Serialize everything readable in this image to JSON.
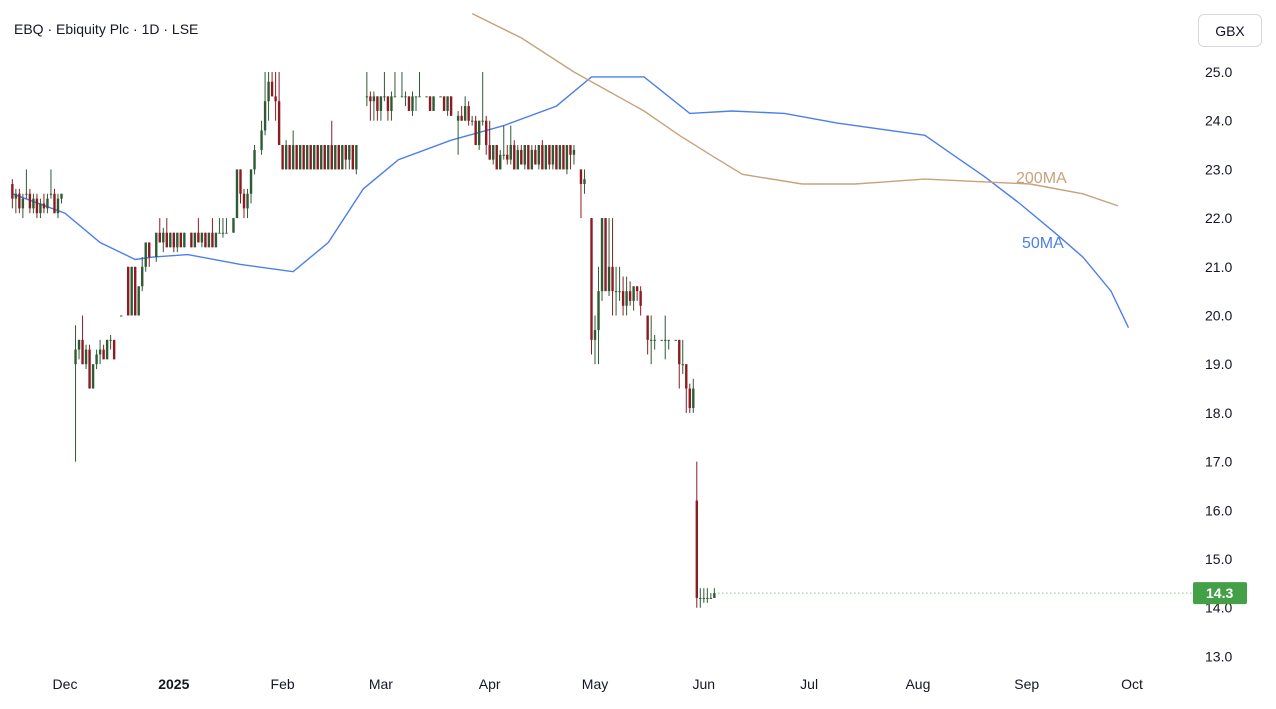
{
  "header": {
    "title": "EBQ · Ebiquity Plc · 1D · LSE",
    "currency_button": "GBX"
  },
  "colors": {
    "up": "#2e5b34",
    "down": "#8c1c24",
    "ma50": "#4d7fe8",
    "ma200": "#c8a27a",
    "last_price_bg": "#43a047",
    "grid": "#f0f3fa"
  },
  "chart_data": {
    "type": "candlestick",
    "title": "EBQ · Ebiquity Plc · 1D · LSE",
    "ylim": [
      12.6,
      25.6
    ],
    "y_ticks": [
      "13.0",
      "14.0",
      "15.0",
      "16.0",
      "17.0",
      "18.0",
      "19.0",
      "20.0",
      "21.0",
      "22.0",
      "23.0",
      "24.0",
      "25.0"
    ],
    "x_ticks": [
      {
        "label": "Dec",
        "day": 0
      },
      {
        "label": "2025",
        "day": 31,
        "bold": true
      },
      {
        "label": "Feb",
        "day": 62
      },
      {
        "label": "Mar",
        "day": 90
      },
      {
        "label": "Apr",
        "day": 121
      },
      {
        "label": "May",
        "day": 151
      },
      {
        "label": "Jun",
        "day": 182
      },
      {
        "label": "Jul",
        "day": 212
      },
      {
        "label": "Aug",
        "day": 243
      },
      {
        "label": "Sep",
        "day": 274
      },
      {
        "label": "Oct",
        "day": 304
      }
    ],
    "series": [
      {
        "name": "50MA",
        "label": "50MA",
        "points": [
          [
            -15,
            22.5
          ],
          [
            0,
            22.1
          ],
          [
            10,
            21.5
          ],
          [
            20,
            21.15
          ],
          [
            25,
            21.2
          ],
          [
            35,
            21.25
          ],
          [
            50,
            21.05
          ],
          [
            65,
            20.9
          ],
          [
            75,
            21.5
          ],
          [
            85,
            22.6
          ],
          [
            95,
            23.2
          ],
          [
            110,
            23.6
          ],
          [
            125,
            23.9
          ],
          [
            140,
            24.3
          ],
          [
            150,
            24.9
          ],
          [
            165,
            24.9
          ],
          [
            178,
            24.15
          ],
          [
            190,
            24.2
          ],
          [
            205,
            24.15
          ],
          [
            220,
            23.95
          ],
          [
            235,
            23.8
          ],
          [
            245,
            23.7
          ],
          [
            252,
            23.35
          ],
          [
            262,
            22.85
          ],
          [
            272,
            22.3
          ],
          [
            282,
            21.7
          ],
          [
            290,
            21.2
          ],
          [
            298,
            20.5
          ],
          [
            303,
            19.75
          ]
        ]
      },
      {
        "name": "200MA",
        "label": "200MA",
        "points": [
          [
            116,
            26.2
          ],
          [
            130,
            25.7
          ],
          [
            145,
            25.0
          ],
          [
            155,
            24.6
          ],
          [
            165,
            24.2
          ],
          [
            175,
            23.7
          ],
          [
            185,
            23.25
          ],
          [
            193,
            22.9
          ],
          [
            210,
            22.7
          ],
          [
            225,
            22.7
          ],
          [
            245,
            22.8
          ],
          [
            260,
            22.75
          ],
          [
            275,
            22.7
          ],
          [
            290,
            22.5
          ],
          [
            300,
            22.25
          ]
        ]
      }
    ],
    "candles": [
      [
        -15,
        22.7,
        22.8,
        22.2,
        22.4
      ],
      [
        -14,
        22.4,
        22.6,
        22.1,
        22.5
      ],
      [
        -13,
        22.5,
        22.6,
        22.1,
        22.2
      ],
      [
        -12,
        22.2,
        22.5,
        22.0,
        22.4
      ],
      [
        -11,
        22.5,
        23.0,
        22.4,
        22.5
      ],
      [
        -10,
        22.5,
        22.6,
        22.1,
        22.2
      ],
      [
        -9,
        22.2,
        22.5,
        22.1,
        22.4
      ],
      [
        -8,
        22.4,
        22.5,
        22.0,
        22.1
      ],
      [
        -7,
        22.1,
        22.4,
        22.0,
        22.3
      ],
      [
        -6,
        22.3,
        22.5,
        22.1,
        22.2
      ],
      [
        -5,
        22.2,
        22.5,
        22.1,
        22.4
      ],
      [
        -4,
        22.5,
        23.0,
        22.4,
        22.5
      ],
      [
        -3,
        22.5,
        22.6,
        22.1,
        22.1
      ],
      [
        -2,
        22.1,
        22.5,
        22.0,
        22.4
      ],
      [
        -1,
        22.4,
        22.5,
        22.3,
        22.5
      ],
      [
        3,
        19.0,
        19.8,
        17.0,
        19.3
      ],
      [
        4,
        19.3,
        19.5,
        19.1,
        19.5
      ],
      [
        5,
        19.5,
        20.0,
        19.0,
        19.0
      ],
      [
        6,
        19.0,
        19.4,
        18.9,
        19.3
      ],
      [
        7,
        19.3,
        19.4,
        18.5,
        18.5
      ],
      [
        8,
        18.5,
        19.0,
        18.5,
        19.0
      ],
      [
        9,
        19.0,
        19.3,
        18.9,
        19.2
      ],
      [
        10,
        19.2,
        19.5,
        19.0,
        19.3
      ],
      [
        11,
        19.3,
        19.4,
        19.1,
        19.1
      ],
      [
        12,
        19.1,
        19.5,
        19.1,
        19.5
      ],
      [
        13,
        19.5,
        19.6,
        19.3,
        19.5
      ],
      [
        14,
        19.5,
        19.5,
        19.1,
        19.1
      ],
      [
        16,
        20.0,
        20.0,
        20.0,
        20.0
      ],
      [
        18,
        21.0,
        21.0,
        20.0,
        20.0
      ],
      [
        19,
        20.0,
        21.0,
        20.0,
        21.0
      ],
      [
        20,
        21.0,
        21.0,
        20.0,
        20.0
      ],
      [
        21,
        20.0,
        20.6,
        20.0,
        20.6
      ],
      [
        22,
        20.6,
        21.2,
        20.5,
        21.0
      ],
      [
        23,
        21.0,
        21.5,
        20.9,
        21.5
      ],
      [
        24,
        21.5,
        21.5,
        21.0,
        21.2
      ],
      [
        26,
        21.2,
        21.7,
        21.1,
        21.7
      ],
      [
        27,
        21.7,
        22.0,
        21.5,
        21.5
      ],
      [
        28,
        21.5,
        21.8,
        21.3,
        21.7
      ],
      [
        29,
        21.7,
        22.0,
        21.4,
        21.4
      ],
      [
        30,
        21.4,
        21.7,
        21.4,
        21.7
      ],
      [
        31,
        21.7,
        21.7,
        21.3,
        21.4
      ],
      [
        32,
        21.4,
        21.7,
        21.3,
        21.7
      ],
      [
        33,
        21.7,
        21.7,
        21.4,
        21.4
      ],
      [
        34,
        21.4,
        21.7,
        21.4,
        21.7
      ],
      [
        36,
        21.7,
        21.7,
        21.4,
        21.4
      ],
      [
        37,
        21.4,
        21.7,
        21.4,
        21.7
      ],
      [
        38,
        21.7,
        22.0,
        21.5,
        21.5
      ],
      [
        39,
        21.5,
        21.7,
        21.4,
        21.7
      ],
      [
        40,
        21.7,
        21.7,
        21.4,
        21.4
      ],
      [
        41,
        21.4,
        21.7,
        21.4,
        21.7
      ],
      [
        42,
        21.7,
        22.0,
        21.4,
        21.4
      ],
      [
        43,
        21.4,
        21.7,
        21.4,
        21.7
      ],
      [
        44,
        21.7,
        22.0,
        21.7,
        21.7
      ],
      [
        45,
        21.7,
        22.0,
        21.6,
        21.7
      ],
      [
        46,
        21.7,
        22.0,
        21.7,
        21.7
      ],
      [
        48,
        21.7,
        22.0,
        21.7,
        22.0
      ],
      [
        49,
        22.0,
        23.0,
        22.0,
        23.0
      ],
      [
        50,
        23.0,
        23.0,
        22.3,
        22.5
      ],
      [
        51,
        22.5,
        22.6,
        22.0,
        22.2
      ],
      [
        52,
        22.2,
        22.6,
        22.0,
        22.5
      ],
      [
        53,
        22.5,
        23.0,
        22.3,
        23.0
      ],
      [
        54,
        23.0,
        23.5,
        22.9,
        23.4
      ],
      [
        56,
        23.4,
        24.0,
        23.3,
        23.8
      ],
      [
        57,
        23.8,
        25.0,
        23.7,
        24.4
      ],
      [
        58,
        24.4,
        25.0,
        24.0,
        24.8
      ],
      [
        59,
        24.8,
        25.0,
        24.5,
        24.5
      ],
      [
        60,
        24.5,
        25.0,
        24.0,
        24.4
      ],
      [
        61,
        24.4,
        25.0,
        23.5,
        23.5
      ],
      [
        62,
        23.5,
        23.5,
        23.0,
        23.0
      ],
      [
        63,
        23.0,
        23.6,
        23.0,
        23.5
      ],
      [
        64,
        23.5,
        23.5,
        23.0,
        23.0
      ],
      [
        65,
        23.0,
        23.8,
        23.0,
        23.5
      ],
      [
        66,
        23.5,
        23.5,
        23.0,
        23.0
      ],
      [
        67,
        23.0,
        23.5,
        23.0,
        23.5
      ],
      [
        68,
        23.5,
        23.5,
        23.0,
        23.0
      ],
      [
        69,
        23.0,
        23.5,
        23.0,
        23.5
      ],
      [
        70,
        23.5,
        23.5,
        23.0,
        23.0
      ],
      [
        71,
        23.0,
        23.5,
        23.0,
        23.5
      ],
      [
        72,
        23.5,
        23.5,
        23.0,
        23.0
      ],
      [
        73,
        23.0,
        23.5,
        23.0,
        23.5
      ],
      [
        74,
        23.5,
        23.5,
        23.0,
        23.0
      ],
      [
        75,
        23.0,
        23.5,
        23.0,
        23.5
      ],
      [
        76,
        23.5,
        24.0,
        23.0,
        23.0
      ],
      [
        77,
        23.0,
        23.5,
        23.0,
        23.5
      ],
      [
        78,
        23.5,
        23.5,
        23.0,
        23.0
      ],
      [
        79,
        23.0,
        23.5,
        23.0,
        23.5
      ],
      [
        80,
        23.5,
        23.5,
        23.0,
        23.2
      ],
      [
        81,
        23.2,
        23.5,
        23.0,
        23.5
      ],
      [
        82,
        23.5,
        23.5,
        23.0,
        23.0
      ],
      [
        83,
        23.0,
        23.5,
        22.9,
        23.5
      ],
      [
        86,
        24.5,
        25.0,
        24.3,
        24.5
      ],
      [
        87,
        24.5,
        24.6,
        24.0,
        24.4
      ],
      [
        88,
        24.4,
        24.6,
        24.0,
        24.5
      ],
      [
        89,
        24.5,
        24.5,
        24.0,
        24.2
      ],
      [
        90,
        24.2,
        24.5,
        24.0,
        24.5
      ],
      [
        91,
        24.5,
        25.0,
        24.4,
        24.5
      ],
      [
        92,
        24.5,
        24.5,
        24.0,
        24.2
      ],
      [
        93,
        24.2,
        24.6,
        24.0,
        24.5
      ],
      [
        94,
        24.5,
        25.0,
        24.5,
        24.5
      ],
      [
        96,
        24.5,
        25.0,
        24.5,
        24.5
      ],
      [
        97,
        24.5,
        24.6,
        24.3,
        24.5
      ],
      [
        98,
        24.5,
        24.5,
        24.2,
        24.2
      ],
      [
        99,
        24.2,
        24.6,
        24.1,
        24.5
      ],
      [
        100,
        24.5,
        24.5,
        24.2,
        24.5
      ],
      [
        101,
        24.5,
        25.0,
        24.5,
        24.5
      ],
      [
        103,
        24.5,
        24.5,
        24.5,
        24.5
      ],
      [
        104,
        24.5,
        24.5,
        24.2,
        24.2
      ],
      [
        105,
        24.2,
        24.5,
        24.2,
        24.5
      ],
      [
        107,
        24.5,
        24.5,
        24.5,
        24.5
      ],
      [
        108,
        24.5,
        24.5,
        24.2,
        24.2
      ],
      [
        109,
        24.2,
        24.5,
        24.1,
        24.5
      ],
      [
        110,
        24.5,
        24.5,
        24.1,
        24.1
      ],
      [
        112,
        24.0,
        24.2,
        23.3,
        24.1
      ],
      [
        113,
        24.1,
        24.3,
        24.0,
        24.0
      ],
      [
        114,
        24.0,
        24.5,
        24.0,
        24.3
      ],
      [
        115,
        24.3,
        24.4,
        23.9,
        24.0
      ],
      [
        116,
        24.0,
        24.1,
        23.9,
        24.0
      ],
      [
        117,
        24.0,
        24.1,
        23.5,
        23.5
      ],
      [
        118,
        23.5,
        24.0,
        23.4,
        24.0
      ],
      [
        119,
        24.0,
        25.0,
        23.9,
        24.0
      ],
      [
        120,
        24.0,
        24.1,
        23.3,
        23.5
      ],
      [
        121,
        23.5,
        24.0,
        23.2,
        23.2
      ],
      [
        122,
        23.2,
        23.5,
        23.1,
        23.5
      ],
      [
        123,
        23.5,
        23.5,
        23.0,
        23.0
      ],
      [
        124,
        23.0,
        23.4,
        23.0,
        23.3
      ],
      [
        125,
        23.3,
        23.9,
        23.2,
        23.3
      ],
      [
        126,
        23.3,
        23.5,
        23.1,
        23.2
      ],
      [
        127,
        23.2,
        23.9,
        23.1,
        23.5
      ],
      [
        128,
        23.5,
        23.6,
        23.0,
        23.0
      ],
      [
        129,
        23.0,
        23.5,
        23.0,
        23.4
      ],
      [
        130,
        23.4,
        23.5,
        23.1,
        23.1
      ],
      [
        131,
        23.1,
        23.5,
        23.0,
        23.5
      ],
      [
        132,
        23.5,
        23.5,
        23.0,
        23.0
      ],
      [
        133,
        23.0,
        23.5,
        23.0,
        23.4
      ],
      [
        134,
        23.4,
        23.5,
        23.1,
        23.1
      ],
      [
        135,
        23.1,
        23.5,
        23.0,
        23.5
      ],
      [
        136,
        23.5,
        23.6,
        23.0,
        23.0
      ],
      [
        137,
        23.0,
        23.5,
        23.0,
        23.5
      ],
      [
        138,
        23.5,
        23.5,
        23.0,
        23.1
      ],
      [
        139,
        23.1,
        23.5,
        23.0,
        23.5
      ],
      [
        140,
        23.5,
        23.5,
        23.0,
        23.0
      ],
      [
        141,
        23.0,
        23.5,
        23.0,
        23.5
      ],
      [
        142,
        23.5,
        23.5,
        23.0,
        23.0
      ],
      [
        143,
        23.0,
        23.5,
        22.9,
        23.5
      ],
      [
        144,
        23.5,
        23.5,
        23.0,
        23.3
      ],
      [
        145,
        23.3,
        23.5,
        23.1,
        23.4
      ],
      [
        147,
        23.0,
        23.0,
        22.0,
        22.7
      ],
      [
        148,
        22.7,
        23.0,
        22.5,
        22.8
      ],
      [
        150,
        22.0,
        22.0,
        19.2,
        19.5
      ],
      [
        151,
        19.5,
        20.0,
        19.0,
        19.7
      ],
      [
        152,
        19.7,
        21.0,
        19.0,
        20.5
      ],
      [
        153,
        20.5,
        22.0,
        20.3,
        22.0
      ],
      [
        154,
        22.0,
        22.0,
        20.5,
        20.5
      ],
      [
        155,
        20.5,
        22.0,
        20.4,
        21.0
      ],
      [
        156,
        21.0,
        22.0,
        20.0,
        20.5
      ],
      [
        157,
        20.5,
        21.0,
        20.0,
        20.5
      ],
      [
        158,
        20.5,
        21.0,
        20.3,
        20.5
      ],
      [
        159,
        20.5,
        20.8,
        20.0,
        20.2
      ],
      [
        160,
        20.2,
        20.8,
        20.0,
        20.5
      ],
      [
        161,
        20.5,
        20.7,
        20.2,
        20.3
      ],
      [
        162,
        20.3,
        20.6,
        20.1,
        20.6
      ],
      [
        163,
        20.6,
        20.6,
        20.3,
        20.5
      ],
      [
        164,
        20.5,
        20.6,
        20.0,
        20.2
      ],
      [
        166,
        20.0,
        20.0,
        19.2,
        19.5
      ],
      [
        167,
        19.5,
        20.0,
        19.0,
        19.5
      ],
      [
        168,
        19.5,
        19.6,
        19.3,
        19.5
      ],
      [
        170,
        19.5,
        19.5,
        19.5,
        19.5
      ],
      [
        171,
        19.5,
        20.0,
        19.1,
        19.5
      ],
      [
        172,
        19.5,
        19.5,
        19.3,
        19.5
      ],
      [
        174,
        19.5,
        19.5,
        19.5,
        19.5
      ],
      [
        175,
        19.5,
        19.5,
        18.5,
        19.0
      ],
      [
        176,
        19.0,
        19.5,
        18.8,
        19.0
      ],
      [
        177,
        19.0,
        19.0,
        18.0,
        18.5
      ],
      [
        178,
        18.5,
        18.6,
        18.0,
        18.1
      ],
      [
        179,
        18.1,
        18.7,
        18.0,
        18.5
      ],
      [
        180,
        16.2,
        17.0,
        14.0,
        14.2
      ],
      [
        181,
        14.2,
        14.4,
        14.0,
        14.2
      ],
      [
        182,
        14.2,
        14.4,
        14.1,
        14.2
      ],
      [
        183,
        14.2,
        14.4,
        14.1,
        14.2
      ],
      [
        184,
        14.2,
        14.3,
        14.2,
        14.2
      ],
      [
        185,
        14.2,
        14.4,
        14.2,
        14.3
      ]
    ],
    "last_price": "14.3",
    "legend": "inline labels"
  }
}
